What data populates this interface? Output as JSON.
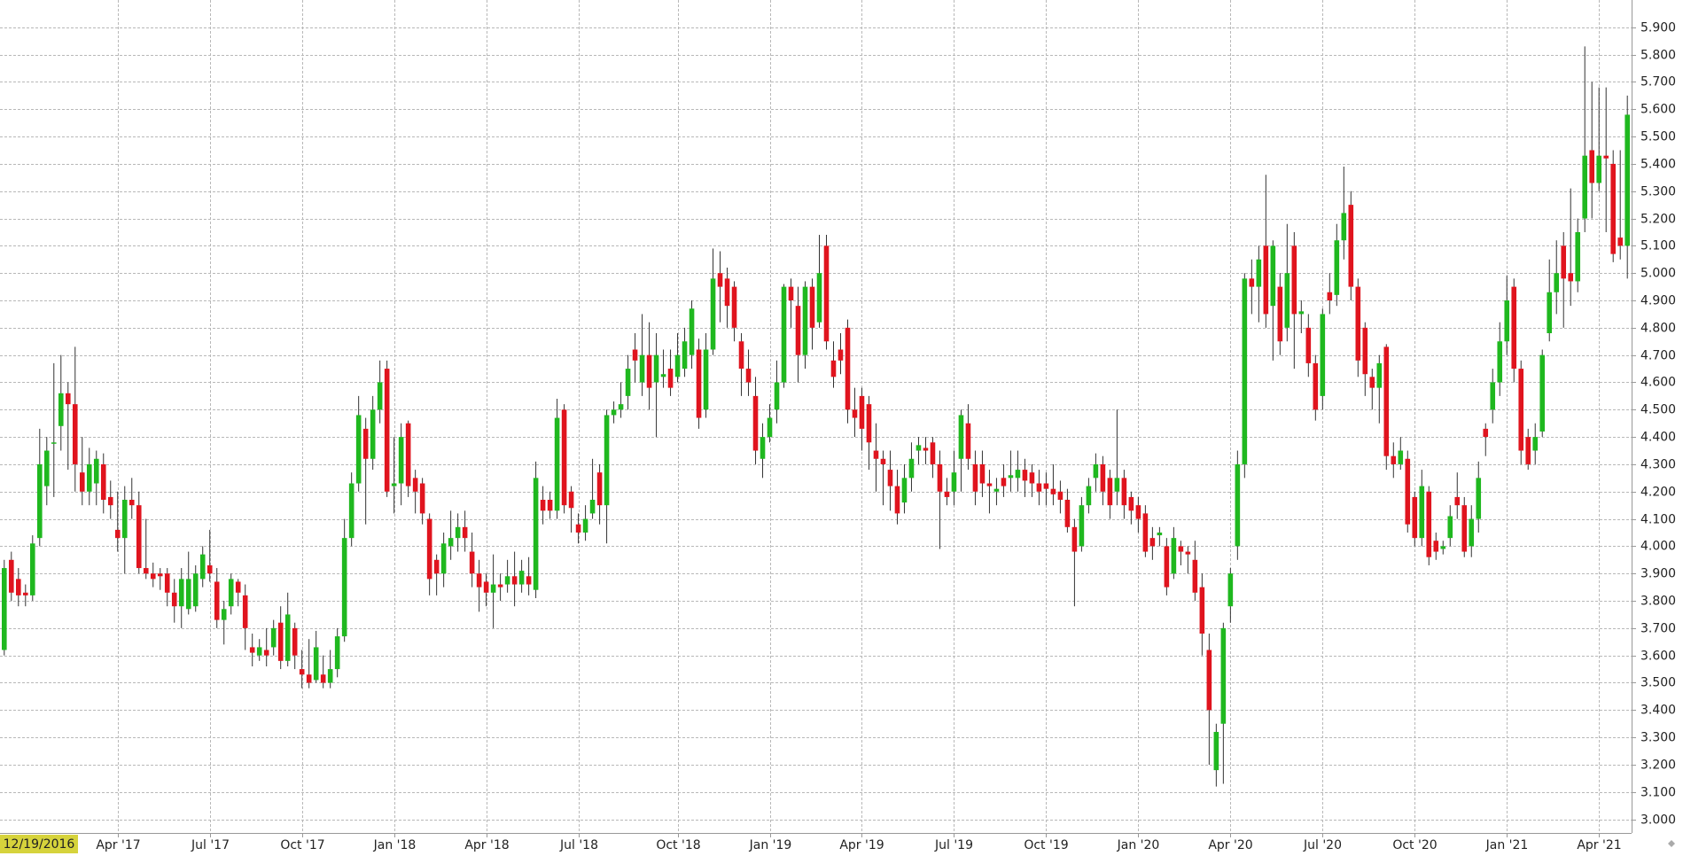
{
  "chart_data": {
    "type": "candlestick",
    "cursor_label": "12/19/2016",
    "up_color": "#1fb81f",
    "down_color": "#e0141e",
    "grid": true,
    "xlim": [
      -0.6,
      229.6
    ],
    "ylim": [
      2.95,
      6.0
    ],
    "xticks": [
      {
        "value": 16,
        "label": "Apr '17"
      },
      {
        "value": 29,
        "label": "Jul '17"
      },
      {
        "value": 42,
        "label": "Oct '17"
      },
      {
        "value": 55,
        "label": "Jan '18"
      },
      {
        "value": 68,
        "label": "Apr '18"
      },
      {
        "value": 81,
        "label": "Jul '18"
      },
      {
        "value": 95,
        "label": "Oct '18"
      },
      {
        "value": 108,
        "label": "Jan '19"
      },
      {
        "value": 121,
        "label": "Apr '19"
      },
      {
        "value": 134,
        "label": "Jul '19"
      },
      {
        "value": 147,
        "label": "Oct '19"
      },
      {
        "value": 160,
        "label": "Jan '20"
      },
      {
        "value": 173,
        "label": "Apr '20"
      },
      {
        "value": 186,
        "label": "Jul '20"
      },
      {
        "value": 199,
        "label": "Oct '20"
      },
      {
        "value": 212,
        "label": "Jan '21"
      },
      {
        "value": 225,
        "label": "Apr '21"
      }
    ],
    "yticks": [
      {
        "value": 3.0,
        "label": "3.000"
      },
      {
        "value": 3.1,
        "label": "3.100"
      },
      {
        "value": 3.2,
        "label": "3.200"
      },
      {
        "value": 3.3,
        "label": "3.300"
      },
      {
        "value": 3.4,
        "label": "3.400"
      },
      {
        "value": 3.5,
        "label": "3.500"
      },
      {
        "value": 3.6,
        "label": "3.600"
      },
      {
        "value": 3.7,
        "label": "3.700"
      },
      {
        "value": 3.8,
        "label": "3.800"
      },
      {
        "value": 3.9,
        "label": "3.900"
      },
      {
        "value": 4.0,
        "label": "4.000"
      },
      {
        "value": 4.1,
        "label": "4.100"
      },
      {
        "value": 4.2,
        "label": "4.200"
      },
      {
        "value": 4.3,
        "label": "4.300"
      },
      {
        "value": 4.4,
        "label": "4.400"
      },
      {
        "value": 4.5,
        "label": "4.500"
      },
      {
        "value": 4.6,
        "label": "4.600"
      },
      {
        "value": 4.7,
        "label": "4.700"
      },
      {
        "value": 4.8,
        "label": "4.800"
      },
      {
        "value": 4.9,
        "label": "4.900"
      },
      {
        "value": 5.0,
        "label": "5.000"
      },
      {
        "value": 5.1,
        "label": "5.100"
      },
      {
        "value": 5.2,
        "label": "5.200"
      },
      {
        "value": 5.3,
        "label": "5.300"
      },
      {
        "value": 5.4,
        "label": "5.400"
      },
      {
        "value": 5.5,
        "label": "5.500"
      },
      {
        "value": 5.6,
        "label": "5.600"
      },
      {
        "value": 5.7,
        "label": "5.700"
      },
      {
        "value": 5.8,
        "label": "5.800"
      },
      {
        "value": 5.9,
        "label": "5.900"
      }
    ],
    "open": [
      3.62,
      3.95,
      3.88,
      3.83,
      3.82,
      4.03,
      4.22,
      4.38,
      4.44,
      4.56,
      4.52,
      4.27,
      4.2,
      4.23,
      4.3,
      4.18,
      4.06,
      4.03,
      4.17,
      4.15,
      3.92,
      3.9,
      3.9,
      3.9,
      3.83,
      3.78,
      3.77,
      3.78,
      3.88,
      3.93,
      3.87,
      3.73,
      3.78,
      3.87,
      3.82,
      3.63,
      3.6,
      3.62,
      3.63,
      3.72,
      3.58,
      3.7,
      3.55,
      3.53,
      3.51,
      3.53,
      3.5,
      3.55,
      3.67,
      4.03,
      4.23,
      4.43,
      4.32,
      4.5,
      4.65,
      4.22,
      4.23,
      4.45,
      4.25,
      4.23,
      4.1,
      3.95,
      3.9,
      4.0,
      4.03,
      4.07,
      3.98,
      3.9,
      3.87,
      3.83,
      3.86,
      3.86,
      3.89,
      3.86,
      3.89,
      3.84,
      4.17,
      4.17,
      4.13,
      4.5,
      4.2,
      4.08,
      4.05,
      4.12,
      4.27,
      4.15,
      4.48,
      4.5,
      4.55,
      4.72,
      4.6,
      4.7,
      4.6,
      4.62,
      4.65,
      4.62,
      4.65,
      4.7,
      4.72,
      4.5,
      4.72,
      5.0,
      4.98,
      4.95,
      4.75,
      4.65,
      4.55,
      4.32,
      4.4,
      4.5,
      4.6,
      4.95,
      4.88,
      4.7,
      4.95,
      4.82,
      5.1,
      4.68,
      4.72,
      4.8,
      4.5,
      4.55,
      4.52,
      4.35,
      4.32,
      4.28,
      4.22,
      4.16,
      4.25,
      4.35,
      4.36,
      4.38,
      4.3,
      4.2,
      4.2,
      4.32,
      4.45,
      4.3,
      4.3,
      4.23,
      4.2,
      4.25,
      4.25,
      4.25,
      4.28,
      4.27,
      4.23,
      4.23,
      4.21,
      4.2,
      4.17,
      4.07,
      4.0,
      4.15,
      4.25,
      4.3,
      4.25,
      4.2,
      4.25,
      4.18,
      4.15,
      4.12,
      4.03,
      4.04,
      4.0,
      3.9,
      4.0,
      3.98,
      3.95,
      3.85,
      3.62,
      3.18,
      3.35,
      3.78,
      4.0,
      4.3,
      4.98,
      4.95,
      5.1,
      4.88,
      4.95,
      4.8,
      5.1,
      4.85,
      4.8,
      4.67,
      4.55,
      4.93,
      4.92,
      5.12,
      5.25,
      4.95,
      4.8,
      4.62,
      4.58,
      4.73,
      4.33,
      4.3,
      4.32,
      4.18,
      4.03,
      4.2,
      4.02,
      3.99,
      4.03,
      4.18,
      4.15,
      4.0,
      4.1,
      4.43,
      4.5,
      4.6,
      4.75,
      4.95,
      4.65,
      4.4,
      4.35,
      4.42,
      4.78,
      4.93,
      5.1,
      5.0,
      4.97,
      5.2,
      5.45,
      5.33,
      5.43,
      5.4,
      5.13,
      5.1
    ],
    "high": [
      3.95,
      3.98,
      3.92,
      3.86,
      4.04,
      4.43,
      4.4,
      4.67,
      4.7,
      4.6,
      4.73,
      4.4,
      4.36,
      4.35,
      4.34,
      4.24,
      4.2,
      4.22,
      4.25,
      4.2,
      4.1,
      3.94,
      3.92,
      3.92,
      3.88,
      3.92,
      3.98,
      3.93,
      4.0,
      4.06,
      3.92,
      3.8,
      3.9,
      3.88,
      3.86,
      3.68,
      3.66,
      3.7,
      3.73,
      3.78,
      3.83,
      3.72,
      3.62,
      3.66,
      3.69,
      3.6,
      3.62,
      3.7,
      4.1,
      4.27,
      4.55,
      4.47,
      4.55,
      4.68,
      4.68,
      4.4,
      4.45,
      4.46,
      4.28,
      4.25,
      4.12,
      3.97,
      4.05,
      4.13,
      4.12,
      4.13,
      4.05,
      3.95,
      3.9,
      3.97,
      3.9,
      3.95,
      3.98,
      3.95,
      3.96,
      4.31,
      4.22,
      4.2,
      4.54,
      4.52,
      4.22,
      4.12,
      4.15,
      4.32,
      4.3,
      4.5,
      4.53,
      4.6,
      4.7,
      4.78,
      4.85,
      4.82,
      4.78,
      4.72,
      4.72,
      4.78,
      4.8,
      4.9,
      4.76,
      4.78,
      5.09,
      5.08,
      5.02,
      4.97,
      4.78,
      4.72,
      4.62,
      4.45,
      4.52,
      4.68,
      4.96,
      4.98,
      4.95,
      4.97,
      4.98,
      5.14,
      5.14,
      4.75,
      4.78,
      4.83,
      4.58,
      4.58,
      4.55,
      4.45,
      4.35,
      4.35,
      4.28,
      4.3,
      4.38,
      4.4,
      4.4,
      4.4,
      4.35,
      4.25,
      4.35,
      4.5,
      4.52,
      4.35,
      4.35,
      4.28,
      4.25,
      4.3,
      4.35,
      4.35,
      4.32,
      4.3,
      4.28,
      4.27,
      4.3,
      4.24,
      4.21,
      4.1,
      4.18,
      4.25,
      4.34,
      4.33,
      4.28,
      4.5,
      4.28,
      4.2,
      4.18,
      4.15,
      4.07,
      4.07,
      4.03,
      4.07,
      4.02,
      4.0,
      4.02,
      3.9,
      3.68,
      3.35,
      3.72,
      3.92,
      4.35,
      5.0,
      5.05,
      5.1,
      5.36,
      5.12,
      5.0,
      5.18,
      5.15,
      4.9,
      4.85,
      4.7,
      4.87,
      5.0,
      5.18,
      5.39,
      5.3,
      4.98,
      4.82,
      4.65,
      4.7,
      4.74,
      4.38,
      4.4,
      4.35,
      4.2,
      4.28,
      4.22,
      4.05,
      4.02,
      4.15,
      4.27,
      4.18,
      4.15,
      4.31,
      4.45,
      4.65,
      4.82,
      4.99,
      4.98,
      4.68,
      4.43,
      4.45,
      4.72,
      5.05,
      5.12,
      5.15,
      5.31,
      5.2,
      5.83,
      5.7,
      5.68,
      5.68,
      5.45,
      5.45,
      5.65
    ],
    "low": [
      3.6,
      3.8,
      3.78,
      3.78,
      3.8,
      4.0,
      4.15,
      4.18,
      4.35,
      4.28,
      4.2,
      4.15,
      4.15,
      4.15,
      4.12,
      4.1,
      3.98,
      3.9,
      4.1,
      3.9,
      3.88,
      3.85,
      3.84,
      3.78,
      3.72,
      3.7,
      3.75,
      3.76,
      3.85,
      3.87,
      3.7,
      3.64,
      3.75,
      3.78,
      3.62,
      3.56,
      3.58,
      3.56,
      3.6,
      3.55,
      3.56,
      3.55,
      3.48,
      3.48,
      3.5,
      3.48,
      3.48,
      3.52,
      3.65,
      4.0,
      4.2,
      4.08,
      4.28,
      4.45,
      4.18,
      4.12,
      4.15,
      4.18,
      4.12,
      4.08,
      3.82,
      3.82,
      3.85,
      3.95,
      3.98,
      3.98,
      3.85,
      3.76,
      3.78,
      3.7,
      3.8,
      3.83,
      3.78,
      3.83,
      3.82,
      3.81,
      4.08,
      4.1,
      4.1,
      4.12,
      4.05,
      4.01,
      4.02,
      4.1,
      4.08,
      4.01,
      4.45,
      4.47,
      4.5,
      4.6,
      4.55,
      4.5,
      4.4,
      4.58,
      4.55,
      4.6,
      4.62,
      4.65,
      4.43,
      4.47,
      4.7,
      4.82,
      4.8,
      4.75,
      4.55,
      4.55,
      4.3,
      4.25,
      4.38,
      4.45,
      4.58,
      4.8,
      4.6,
      4.65,
      4.72,
      4.8,
      4.72,
      4.58,
      4.63,
      4.45,
      4.4,
      4.35,
      4.28,
      4.2,
      4.15,
      4.13,
      4.08,
      4.12,
      4.2,
      4.3,
      4.3,
      4.25,
      3.99,
      4.15,
      4.15,
      4.2,
      4.28,
      4.15,
      4.18,
      4.12,
      4.15,
      4.18,
      4.2,
      4.2,
      4.18,
      4.18,
      4.15,
      4.15,
      4.15,
      4.12,
      4.05,
      3.78,
      3.98,
      4.12,
      4.2,
      4.15,
      4.1,
      4.15,
      4.1,
      4.08,
      4.05,
      3.96,
      3.95,
      4.0,
      3.82,
      3.88,
      3.93,
      3.9,
      3.8,
      3.6,
      3.2,
      3.12,
      3.13,
      3.72,
      3.95,
      4.25,
      4.85,
      4.82,
      4.8,
      4.68,
      4.7,
      4.75,
      4.65,
      4.78,
      4.62,
      4.46,
      4.5,
      4.85,
      4.88,
      5.05,
      4.9,
      4.62,
      4.55,
      4.5,
      4.45,
      4.28,
      4.25,
      4.28,
      4.05,
      4.0,
      4.0,
      3.93,
      3.95,
      3.97,
      4.0,
      4.1,
      3.96,
      3.96,
      4.05,
      4.33,
      4.45,
      4.55,
      4.7,
      4.6,
      4.3,
      4.28,
      4.3,
      4.4,
      4.75,
      4.85,
      4.8,
      4.88,
      4.93,
      5.15,
      5.2,
      5.3,
      5.15,
      5.04,
      5.05,
      4.98
    ],
    "close": [
      3.92,
      3.83,
      3.82,
      3.82,
      4.01,
      4.3,
      4.35,
      4.38,
      4.56,
      4.52,
      4.3,
      4.2,
      4.3,
      4.32,
      4.17,
      4.15,
      4.03,
      4.17,
      4.15,
      3.92,
      3.9,
      3.88,
      3.89,
      3.83,
      3.78,
      3.88,
      3.88,
      3.9,
      3.97,
      3.9,
      3.73,
      3.77,
      3.88,
      3.83,
      3.7,
      3.61,
      3.63,
      3.6,
      3.7,
      3.58,
      3.75,
      3.6,
      3.53,
      3.5,
      3.63,
      3.5,
      3.55,
      3.67,
      4.03,
      4.23,
      4.48,
      4.32,
      4.5,
      4.6,
      4.2,
      4.23,
      4.4,
      4.22,
      4.2,
      4.12,
      3.88,
      3.9,
      4.01,
      4.03,
      4.07,
      4.03,
      3.9,
      3.85,
      3.83,
      3.86,
      3.85,
      3.89,
      3.86,
      3.91,
      3.86,
      4.25,
      4.13,
      4.13,
      4.47,
      4.15,
      4.14,
      4.05,
      4.1,
      4.17,
      4.15,
      4.48,
      4.5,
      4.52,
      4.65,
      4.68,
      4.7,
      4.58,
      4.7,
      4.63,
      4.58,
      4.7,
      4.75,
      4.87,
      4.47,
      4.72,
      4.98,
      4.95,
      4.88,
      4.8,
      4.65,
      4.6,
      4.35,
      4.4,
      4.47,
      4.6,
      4.95,
      4.9,
      4.7,
      4.95,
      4.8,
      5.0,
      4.75,
      4.62,
      4.68,
      4.5,
      4.47,
      4.43,
      4.38,
      4.32,
      4.3,
      4.22,
      4.12,
      4.25,
      4.32,
      4.37,
      4.35,
      4.3,
      4.2,
      4.18,
      4.27,
      4.48,
      4.32,
      4.2,
      4.23,
      4.22,
      4.21,
      4.22,
      4.26,
      4.28,
      4.24,
      4.23,
      4.2,
      4.21,
      4.19,
      4.17,
      4.07,
      3.98,
      4.15,
      4.22,
      4.3,
      4.2,
      4.15,
      4.25,
      4.15,
      4.13,
      4.1,
      3.98,
      4.0,
      4.05,
      3.85,
      4.03,
      3.98,
      3.97,
      3.83,
      3.68,
      3.4,
      3.32,
      3.7,
      3.9,
      4.3,
      4.98,
      4.95,
      5.05,
      4.85,
      5.1,
      4.75,
      5.0,
      4.85,
      4.86,
      4.67,
      4.5,
      4.85,
      4.9,
      5.12,
      5.22,
      4.95,
      4.68,
      4.63,
      4.58,
      4.67,
      4.33,
      4.3,
      4.35,
      4.08,
      4.03,
      4.22,
      3.96,
      3.98,
      4.0,
      4.11,
      4.15,
      3.98,
      4.1,
      4.25,
      4.4,
      4.6,
      4.75,
      4.9,
      4.65,
      4.35,
      4.3,
      4.4,
      4.7,
      4.93,
      5.0,
      4.98,
      4.97,
      5.15,
      5.43,
      5.33,
      5.43,
      5.42,
      5.07,
      5.1,
      5.58
    ]
  }
}
